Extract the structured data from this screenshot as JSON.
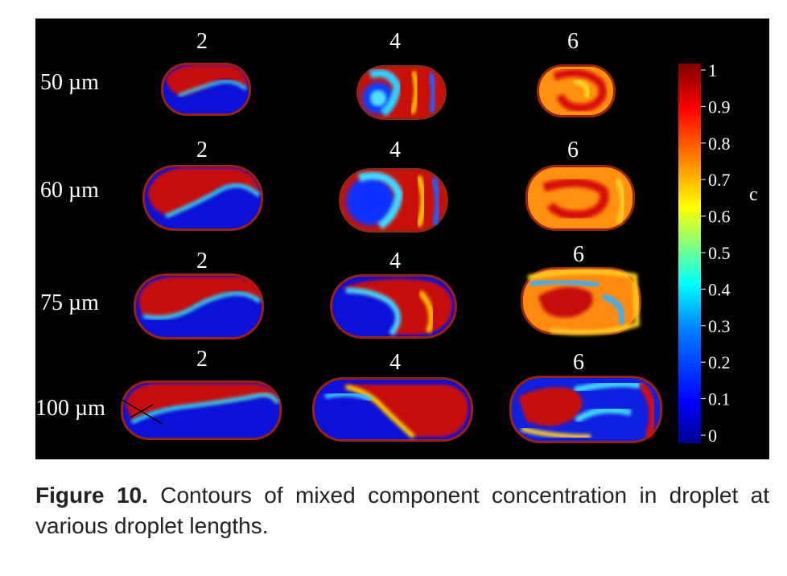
{
  "figure": {
    "row_labels": [
      "50 µm",
      "60 µm",
      "75 µm",
      "100 µm"
    ],
    "column_labels": [
      "2",
      "4",
      "6"
    ],
    "colorbar": {
      "title": "c",
      "ticks": [
        "1",
        "0.9",
        "0.8",
        "0.7",
        "0.6",
        "0.5",
        "0.4",
        "0.3",
        "0.2",
        "0.1",
        "0"
      ],
      "colormap": [
        "#00008f",
        "#0000ff",
        "#0080ff",
        "#00ffff",
        "#80ff80",
        "#ffff00",
        "#ff8000",
        "#ff0000",
        "#800000"
      ]
    }
  },
  "caption": {
    "label": "Figure 10.",
    "text": "Contours of mixed component concentration in droplet at various droplet lengths."
  }
}
